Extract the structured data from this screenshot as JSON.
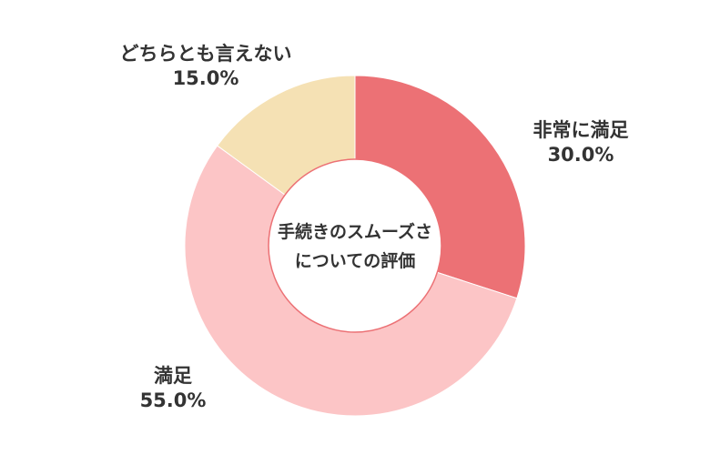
{
  "chart_data": {
    "type": "pie",
    "style": "donut",
    "center_title_lines": [
      "手続きのスムーズさ",
      "についての評価"
    ],
    "slices": [
      {
        "label": "非常に満足",
        "value": 30.0,
        "value_text": "30.0%",
        "color": "#ec7175"
      },
      {
        "label": "満足",
        "value": 55.0,
        "value_text": "55.0%",
        "color": "#fcc5c6"
      },
      {
        "label": "どちらとも言えない",
        "value": 15.0,
        "value_text": "15.0%",
        "color": "#f5e1b4"
      }
    ],
    "start": "top",
    "direction": "clockwise"
  }
}
